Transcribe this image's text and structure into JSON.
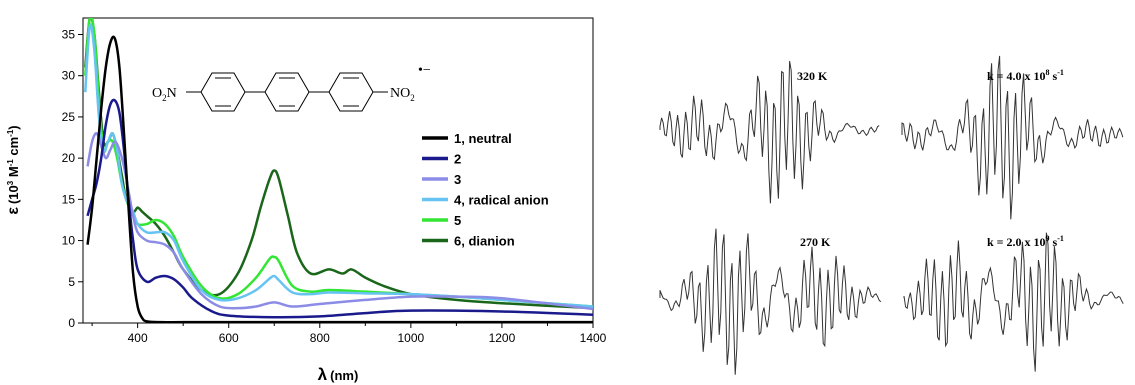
{
  "chart_data": [
    {
      "type": "line",
      "xlabel_symbol": "λ",
      "xlabel_unit": "(nm)",
      "ylabel_symbol": "ε",
      "ylabel_unit": "(10",
      "ylabel_sup1": "3",
      "ylabel_mid": " M",
      "ylabel_sup2": "-1",
      "ylabel_end": " cm",
      "ylabel_sup3": "-1",
      "ylabel_close": ")",
      "xlim": [
        280,
        1400
      ],
      "ylim": [
        0,
        37
      ],
      "xticks": [
        "400",
        "600",
        "800",
        "1000",
        "1200",
        "1400"
      ],
      "yticks": [
        "0",
        "5",
        "10",
        "15",
        "20",
        "25",
        "30",
        "35"
      ],
      "grid": false,
      "legend_position": "right",
      "structure": {
        "left_group": "O",
        "left_sub": "2",
        "left_atom": "N",
        "right_group": "NO",
        "right_sub": "2",
        "charge": "•−"
      },
      "series": [
        {
          "name": "1, neutral",
          "color": "#000000",
          "x": [
            290,
            300,
            310,
            320,
            330,
            340,
            350,
            360,
            370,
            380,
            390,
            400,
            410,
            420,
            450,
            500,
            600,
            700,
            800,
            900,
            1000,
            1200,
            1400
          ],
          "y": [
            9.5,
            14,
            20,
            26,
            31,
            34,
            34.5,
            31,
            23,
            14,
            6,
            2,
            0.6,
            0.2,
            0.1,
            0.1,
            0.1,
            0.1,
            0.1,
            0.1,
            0.1,
            0.1,
            0.1
          ]
        },
        {
          "name": "2",
          "color": "#1a1a8c",
          "x": [
            290,
            300,
            310,
            320,
            330,
            340,
            350,
            360,
            370,
            380,
            390,
            400,
            420,
            440,
            460,
            480,
            500,
            520,
            560,
            600,
            700,
            800,
            900,
            1000,
            1200,
            1400
          ],
          "y": [
            13,
            15,
            17,
            20,
            24,
            26.5,
            27,
            25.5,
            21,
            15,
            10,
            6.5,
            5,
            5.5,
            5.7,
            5.3,
            4.3,
            3,
            1.5,
            0.9,
            0.7,
            0.8,
            1.2,
            1.5,
            1.4,
            1.0
          ]
        },
        {
          "name": "3",
          "color": "#8c8ce6",
          "x": [
            290,
            300,
            310,
            320,
            330,
            340,
            350,
            360,
            370,
            380,
            390,
            400,
            420,
            440,
            460,
            480,
            500,
            540,
            580,
            620,
            660,
            700,
            740,
            800,
            900,
            1000,
            1100,
            1200,
            1400
          ],
          "y": [
            19,
            22,
            23,
            21.5,
            20,
            21,
            22,
            21,
            19,
            16,
            13,
            11,
            10,
            9.8,
            9.5,
            8.5,
            6.5,
            3.5,
            2.0,
            1.8,
            2.0,
            2.5,
            2.0,
            2.3,
            2.8,
            3.2,
            3.2,
            3.0,
            1.7
          ]
        },
        {
          "name": "4, radical anion",
          "color": "#66c3f2",
          "x": [
            285,
            295,
            305,
            315,
            325,
            335,
            345,
            355,
            365,
            375,
            390,
            400,
            420,
            440,
            460,
            480,
            500,
            540,
            580,
            620,
            660,
            690,
            700,
            710,
            740,
            780,
            820,
            900,
            1000,
            1100,
            1200,
            1400
          ],
          "y": [
            28,
            36,
            33,
            25,
            21,
            22,
            23,
            21,
            17,
            15,
            13.5,
            12,
            11,
            11,
            11,
            10,
            7.5,
            4,
            2.8,
            3,
            4,
            5.4,
            5.7,
            5.2,
            3.7,
            3.5,
            3.7,
            3.6,
            3.5,
            3.2,
            2.8,
            2.0
          ]
        },
        {
          "name": "5",
          "color": "#33e633",
          "x": [
            285,
            295,
            305,
            315,
            325,
            335,
            345,
            355,
            365,
            375,
            390,
            400,
            420,
            440,
            460,
            480,
            500,
            540,
            580,
            620,
            660,
            690,
            700,
            710,
            740,
            780,
            820,
            900,
            1000,
            1100,
            1200,
            1400
          ],
          "y": [
            30,
            37,
            35,
            27,
            21,
            22,
            22,
            20,
            17,
            15,
            13,
            12,
            12,
            12.5,
            12,
            10.5,
            8,
            4.5,
            3,
            3.5,
            5.5,
            7.8,
            8,
            7.5,
            4.5,
            3.8,
            4.0,
            3.8,
            3.5,
            3.2,
            2.8,
            2.0
          ]
        },
        {
          "name": "6, dianion",
          "color": "#1a661a",
          "x": [
            285,
            295,
            305,
            315,
            325,
            335,
            345,
            355,
            365,
            375,
            390,
            400,
            410,
            420,
            440,
            460,
            480,
            500,
            540,
            580,
            620,
            650,
            670,
            690,
            700,
            710,
            730,
            750,
            780,
            820,
            850,
            870,
            900,
            940,
            1000,
            1100,
            1200,
            1400
          ],
          "y": [
            31,
            37,
            35,
            28,
            22,
            22,
            23,
            21,
            18,
            15,
            13.5,
            14,
            13.5,
            13,
            12,
            10.5,
            8.5,
            6.5,
            4,
            3.5,
            6,
            10,
            14,
            17.5,
            18.5,
            17.5,
            13,
            8.5,
            6,
            6.5,
            6,
            6.5,
            5.5,
            4.5,
            3.5,
            2.8,
            2.4,
            1.8
          ]
        }
      ]
    },
    {
      "type": "epr-spectra",
      "panels": [
        {
          "label": "320 K"
        },
        {
          "label_prefix": "k = 4.0 x 10",
          "label_exp": "8",
          "label_unit": " s",
          "label_unit_exp": "-1"
        },
        {
          "label": "270 K"
        },
        {
          "label_prefix": "k = 2.0 x 10",
          "label_exp": "9",
          "label_unit": " s",
          "label_unit_exp": "-1"
        }
      ]
    }
  ]
}
